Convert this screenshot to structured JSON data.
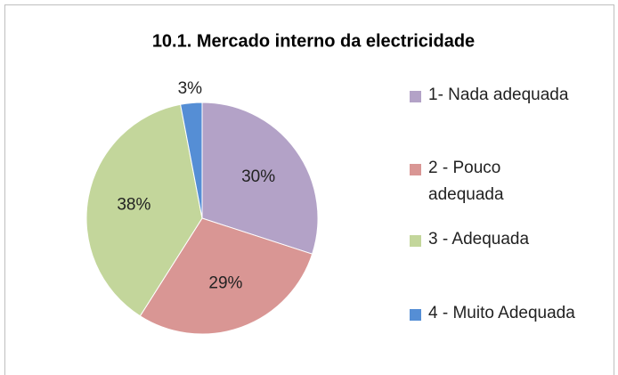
{
  "chart_data": {
    "type": "pie",
    "title": "10.1. Mercado interno da electricidade",
    "categories": [
      "1- Nada adequada",
      "2 - Pouco adequada",
      "3 - Adequada",
      "4 - Muito Adequada"
    ],
    "values": [
      30,
      29,
      38,
      3
    ],
    "colors": [
      "#b3a2c7",
      "#d99694",
      "#c3d69b",
      "#558ed5"
    ],
    "legend": "right"
  }
}
